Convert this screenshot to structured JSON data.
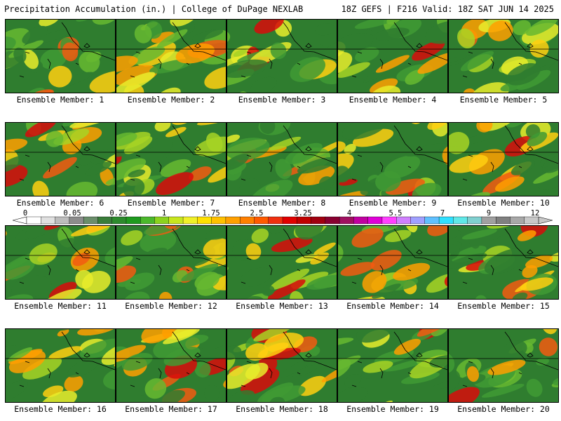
{
  "header": {
    "left": "Precipitation Accumulation (in.) | College of DuPage NEXLAB",
    "right": "18Z GEFS | F216 Valid: 18Z SAT JUN 14 2025"
  },
  "members": [
    {
      "label": "Ensemble Member: 1"
    },
    {
      "label": "Ensemble Member: 2"
    },
    {
      "label": "Ensemble Member: 3"
    },
    {
      "label": "Ensemble Member: 4"
    },
    {
      "label": "Ensemble Member: 5"
    },
    {
      "label": "Ensemble Member: 6"
    },
    {
      "label": "Ensemble Member: 7"
    },
    {
      "label": "Ensemble Member: 8"
    },
    {
      "label": "Ensemble Member: 9"
    },
    {
      "label": "Ensemble Member: 10"
    },
    {
      "label": "Ensemble Member: 11"
    },
    {
      "label": "Ensemble Member: 12"
    },
    {
      "label": "Ensemble Member: 13"
    },
    {
      "label": "Ensemble Member: 14"
    },
    {
      "label": "Ensemble Member: 15"
    },
    {
      "label": "Ensemble Member: 16"
    },
    {
      "label": "Ensemble Member: 17"
    },
    {
      "label": "Ensemble Member: 18"
    },
    {
      "label": "Ensemble Member: 19"
    },
    {
      "label": "Ensemble Member: 20"
    }
  ],
  "colorbar": {
    "tick_labels": [
      "0",
      "0.05",
      "0.25",
      "1",
      "1.75",
      "2.5",
      "3.25",
      "4",
      "5.5",
      "7",
      "9",
      "12"
    ],
    "colors": [
      "#ffffff",
      "#e0e0e0",
      "#bdbdbd",
      "#8c8c8c",
      "#6b8e6b",
      "#3a7d3a",
      "#2d8a2d",
      "#1f9a1f",
      "#4bb82c",
      "#8cd21e",
      "#c8e61e",
      "#f0f028",
      "#ffe000",
      "#ffc000",
      "#ffa000",
      "#ff8000",
      "#ff5a00",
      "#f03010",
      "#e00000",
      "#c00000",
      "#a00010",
      "#880030",
      "#a01060",
      "#c000a0",
      "#e000d8",
      "#ff40ff",
      "#d080ff",
      "#a0a0ff",
      "#60c0ff",
      "#30e0ff",
      "#60e8e8",
      "#80d0d0",
      "#a0a0a0",
      "#808080",
      "#a8a8a8",
      "#c8c8c8"
    ]
  },
  "legend_colors": {
    "green": "#2d8a2d",
    "yellow": "#f0f028",
    "orange": "#ffa000",
    "red": "#e00000",
    "magenta": "#c000a0"
  }
}
